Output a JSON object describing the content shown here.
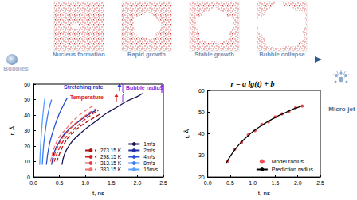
{
  "flow": {
    "start": "Bubbles",
    "stages": [
      "Nucleus formation",
      "Rapid growth",
      "Stable growth",
      "Bubble collapse"
    ],
    "end": "Micro-jet"
  },
  "chart_data": [
    {
      "type": "line",
      "x_label": "t, ns",
      "y_label": "r, Å",
      "xlim": [
        0,
        2.5
      ],
      "xticks": [
        {
          "value": 0,
          "label": "0.0"
        },
        0.5,
        {
          "value": 1,
          "label": "1.0"
        },
        1.5,
        {
          "value": 2,
          "label": "2.0"
        },
        2.5
      ],
      "ylim": [
        0,
        60
      ],
      "yticks": [
        0,
        10,
        20,
        30,
        40,
        50,
        60
      ],
      "grid": false,
      "legend": "lower right",
      "annotations": [
        {
          "text": "Stretching rate",
          "color": "#1f3fd0"
        },
        {
          "text": "Temperature",
          "color": "#e02020"
        },
        {
          "text": "Bubble radius",
          "color": "#8a2be2"
        }
      ],
      "series": [
        {
          "name": "1m/s",
          "color": "#141450",
          "line_style": "solid",
          "x": [
            0.55,
            0.6,
            0.7,
            0.8,
            1.0,
            1.2,
            1.4,
            1.6,
            1.8,
            2.0,
            2.1
          ],
          "values": [
            8,
            15,
            21,
            25,
            31,
            36,
            41,
            45,
            49,
            52,
            54
          ]
        },
        {
          "name": "2m/s",
          "color": "#1f2f9f",
          "line_style": "solid",
          "x": [
            0.35,
            0.4,
            0.5,
            0.6,
            0.8,
            1.0,
            1.2
          ],
          "values": [
            8,
            16,
            23,
            28,
            34,
            39,
            43
          ]
        },
        {
          "name": "4m/s",
          "color": "#2a4fd0",
          "line_style": "solid",
          "x": [
            0.25,
            0.3,
            0.4,
            0.5,
            0.6,
            0.65
          ],
          "values": [
            8,
            20,
            32,
            41,
            48,
            51
          ]
        },
        {
          "name": "8m/s",
          "color": "#3a7af0",
          "line_style": "solid",
          "x": [
            0.17,
            0.2,
            0.25,
            0.3,
            0.35
          ],
          "values": [
            8,
            22,
            35,
            44,
            50
          ]
        },
        {
          "name": "16m/s",
          "color": "#5aa0ff",
          "line_style": "solid",
          "x": [
            0.12,
            0.14,
            0.17,
            0.2,
            0.22
          ],
          "values": [
            8,
            22,
            36,
            46,
            51
          ]
        },
        {
          "name": "273.15 K",
          "color": "#b01010",
          "line_style": "dashed",
          "x": [
            0.45,
            0.6,
            0.8,
            1.0,
            1.2,
            1.3
          ],
          "values": [
            10,
            22,
            30,
            35,
            39,
            41
          ]
        },
        {
          "name": "298.15 K",
          "color": "#d02020",
          "line_style": "dashed",
          "x": [
            0.4,
            0.55,
            0.75,
            0.95,
            1.15,
            1.25
          ],
          "values": [
            10,
            22,
            30,
            36,
            41,
            43
          ]
        },
        {
          "name": "313.15 K",
          "color": "#e84040",
          "line_style": "dashed",
          "x": [
            0.37,
            0.5,
            0.7,
            0.9,
            1.1,
            1.2
          ],
          "values": [
            10,
            22,
            31,
            37,
            42,
            44
          ]
        },
        {
          "name": "333.15 K",
          "color": "#f07070",
          "line_style": "dashed",
          "x": [
            0.33,
            0.45,
            0.65,
            0.85,
            1.05,
            1.15
          ],
          "values": [
            10,
            23,
            32,
            39,
            44,
            46
          ]
        }
      ]
    },
    {
      "type": "line",
      "title": "r = a lg(t) + b",
      "x_label": "t, ns",
      "y_label": "r, Å",
      "xlim": [
        0,
        2.5
      ],
      "xticks": [
        {
          "value": 0,
          "label": "0.0"
        },
        0.5,
        {
          "value": 1,
          "label": "1.0"
        },
        1.5,
        {
          "value": 2,
          "label": "2.0"
        },
        2.5
      ],
      "ylim": [
        20,
        60
      ],
      "yticks": [
        20,
        30,
        40,
        50,
        60
      ],
      "grid": false,
      "legend": "lower right",
      "series": [
        {
          "name": "Model radius",
          "type": "scatter",
          "marker": "circle",
          "color": "#e8262a",
          "x": [
            0.45,
            0.6,
            0.75,
            0.9,
            1.05,
            1.2,
            1.35,
            1.5,
            1.65,
            1.8,
            1.95,
            2.1
          ],
          "values": [
            27.5,
            32.9,
            36.0,
            39.5,
            41.5,
            44.3,
            45.5,
            47.8,
            49.2,
            50.3,
            52.0,
            52.8
          ]
        },
        {
          "name": "Prediction radius",
          "type": "line",
          "color": "#000000",
          "line_style": "solid",
          "x": [
            0.4,
            0.5,
            0.6,
            0.7,
            0.8,
            0.9,
            1.0,
            1.1,
            1.2,
            1.3,
            1.4,
            1.5,
            1.6,
            1.7,
            1.8,
            1.9,
            2.0,
            2.1
          ],
          "values": [
            26.0,
            29.6,
            32.6,
            35.1,
            37.3,
            39.2,
            40.9,
            42.5,
            43.9,
            45.2,
            46.4,
            47.5,
            48.6,
            49.5,
            50.5,
            51.4,
            52.2,
            53.0
          ]
        }
      ]
    }
  ]
}
